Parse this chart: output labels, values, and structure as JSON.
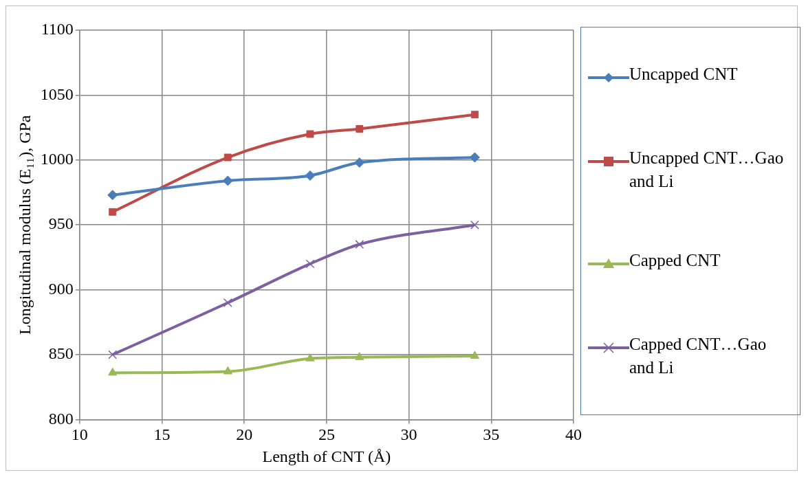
{
  "chart_data": {
    "type": "line",
    "xlabel": "Length of CNT (Å)",
    "ylabel": "Longitudinal modulus (E₁₁), GPa",
    "xlim": [
      10,
      40
    ],
    "xticks": [
      10,
      15,
      20,
      25,
      30,
      35,
      40
    ],
    "ylim": [
      800,
      1100
    ],
    "yticks": [
      800,
      850,
      900,
      950,
      1000,
      1050,
      1100
    ],
    "grid": true,
    "legend": "right",
    "x": [
      12,
      19,
      24,
      27,
      34
    ],
    "series": [
      {
        "name": "Uncapped CNT",
        "color": "#4a7ebb",
        "marker": "diamond",
        "values": [
          973,
          984,
          988,
          998,
          1002
        ]
      },
      {
        "name": "Uncapped CNT…Gao and Li",
        "color": "#be4b48",
        "marker": "square",
        "values": [
          960,
          1002,
          1020,
          1024,
          1035
        ]
      },
      {
        "name": "Capped CNT",
        "color": "#98b954",
        "marker": "triangle",
        "values": [
          836,
          837,
          847,
          848,
          849
        ]
      },
      {
        "name": "Capped CNT…Gao and Li",
        "color": "#7d60a0",
        "marker": "cross",
        "values": [
          850,
          890,
          920,
          935,
          950
        ]
      }
    ]
  }
}
